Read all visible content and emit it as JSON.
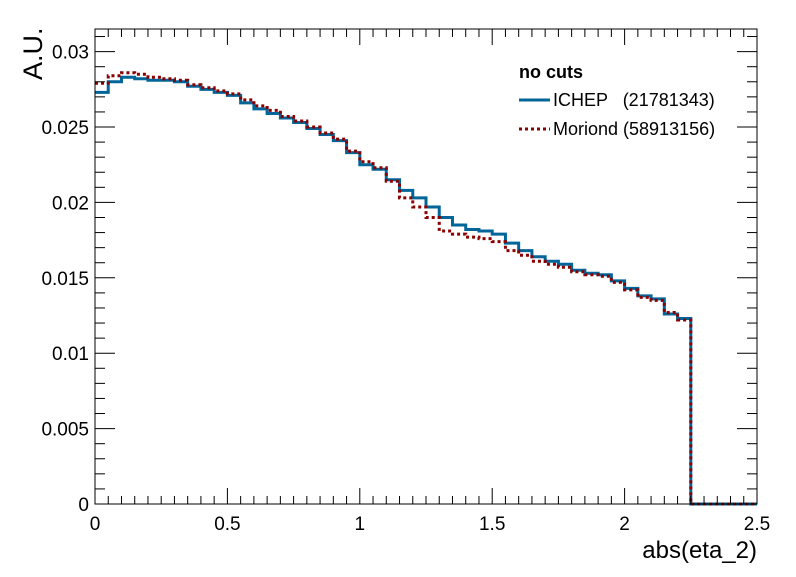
{
  "chart_data": {
    "type": "line",
    "title": "",
    "xlabel": "abs(eta_2)",
    "ylabel": "A.U.",
    "xlim": [
      0,
      2.5
    ],
    "ylim": [
      0,
      0.0315
    ],
    "grid": false,
    "x_ticks": [
      "0",
      "0.5",
      "1",
      "1.5",
      "2",
      "2.5"
    ],
    "y_ticks": [
      "0",
      "0.005",
      "0.01",
      "0.015",
      "0.02",
      "0.025",
      "0.03"
    ],
    "legend": {
      "title": "no cuts",
      "placement": "top-right",
      "entries": [
        "ICHEP   (21781343)",
        "Moriond (58913156)"
      ]
    },
    "bin_width": 0.05,
    "bin_edges_start": 0,
    "series": [
      {
        "name": "ICHEP   (21781343)",
        "color": "#006699",
        "style": "solid",
        "values": [
          0.0273,
          0.028,
          0.0283,
          0.0282,
          0.0281,
          0.0281,
          0.028,
          0.0277,
          0.0275,
          0.0273,
          0.0271,
          0.0266,
          0.0262,
          0.0259,
          0.0256,
          0.0253,
          0.0249,
          0.0245,
          0.0241,
          0.0233,
          0.0225,
          0.0222,
          0.0215,
          0.0208,
          0.0203,
          0.0197,
          0.019,
          0.0185,
          0.0182,
          0.0181,
          0.0179,
          0.0173,
          0.0168,
          0.0164,
          0.0161,
          0.0159,
          0.0155,
          0.0153,
          0.0152,
          0.0148,
          0.0143,
          0.0138,
          0.0136,
          0.0126,
          0.0123,
          0,
          0,
          0,
          0,
          0
        ]
      },
      {
        "name": "Moriond (58913156)",
        "color": "#8b0000",
        "style": "dotted",
        "values": [
          0.0279,
          0.0284,
          0.0286,
          0.0285,
          0.0283,
          0.0282,
          0.0281,
          0.0278,
          0.0276,
          0.0274,
          0.0272,
          0.0268,
          0.0264,
          0.0261,
          0.0257,
          0.0254,
          0.025,
          0.0246,
          0.0242,
          0.0234,
          0.0227,
          0.0223,
          0.0214,
          0.0203,
          0.0197,
          0.019,
          0.0181,
          0.0179,
          0.0177,
          0.0176,
          0.0174,
          0.0168,
          0.0165,
          0.0161,
          0.0159,
          0.0157,
          0.0154,
          0.0152,
          0.0151,
          0.0147,
          0.0142,
          0.0137,
          0.0135,
          0.0127,
          0.0122,
          0,
          0,
          0,
          0,
          0
        ]
      }
    ]
  }
}
